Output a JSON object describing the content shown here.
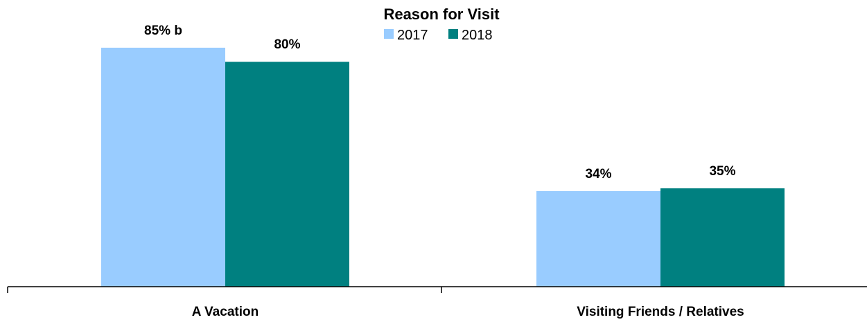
{
  "chart_data": {
    "type": "bar",
    "title": "Reason for Visit",
    "categories": [
      "A Vacation",
      "Visiting Friends / Relatives"
    ],
    "series": [
      {
        "name": "2017",
        "values": [
          85,
          34
        ],
        "labels": [
          "85% b",
          "34%"
        ],
        "color": "#99ccff"
      },
      {
        "name": "2018",
        "values": [
          80,
          35
        ],
        "labels": [
          "80%",
          "35%"
        ],
        "color": "#008080"
      }
    ],
    "xlabel": "",
    "ylabel": "",
    "ylim": [
      0,
      100
    ],
    "grid": false,
    "legend_position": "top-center"
  }
}
